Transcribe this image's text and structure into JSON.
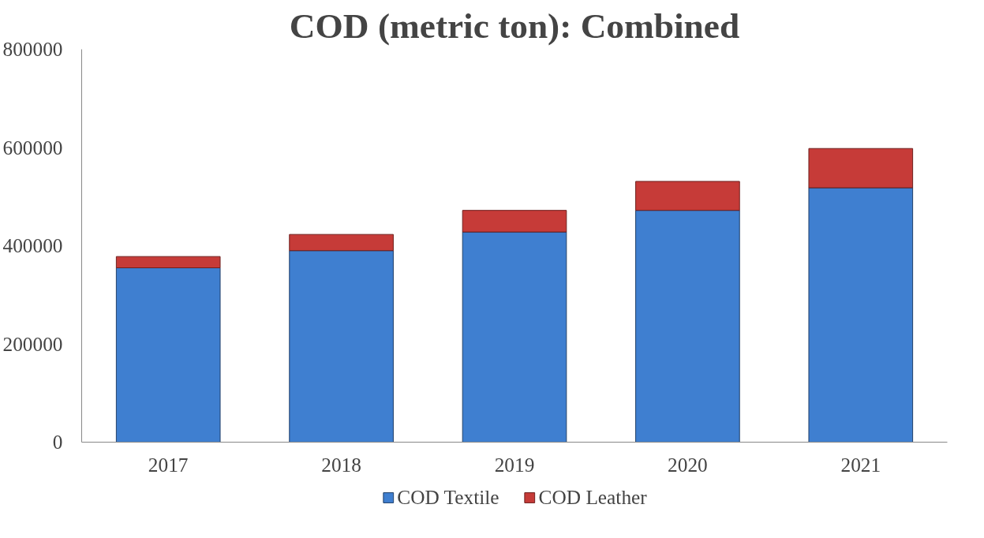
{
  "chart_data": {
    "type": "bar",
    "title": "COD (metric ton): Combined",
    "categories": [
      "2017",
      "2018",
      "2019",
      "2020",
      "2021"
    ],
    "stacked": true,
    "series": [
      {
        "name": "COD Textile",
        "color": "#3f7fd0",
        "values": [
          355000,
          390000,
          428000,
          472000,
          518000
        ]
      },
      {
        "name": "COD Leather",
        "color": "#c63b38",
        "values": [
          23000,
          33000,
          44000,
          59000,
          80000
        ]
      }
    ],
    "ylim": [
      0,
      800000
    ],
    "yticks": [
      0,
      200000,
      400000,
      600000,
      800000
    ],
    "grid": false,
    "legend": "bottom"
  }
}
